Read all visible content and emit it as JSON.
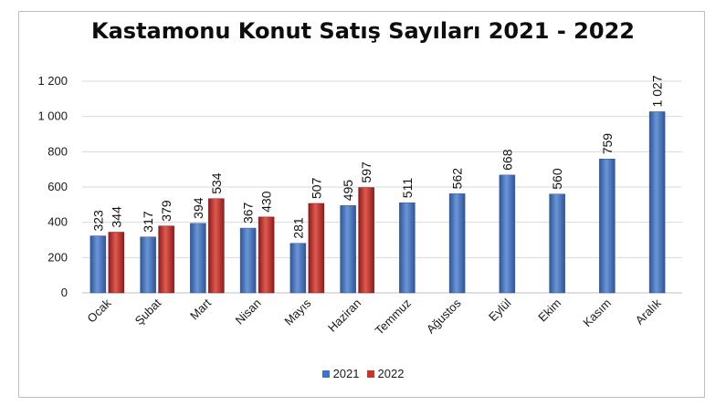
{
  "chart_data": {
    "type": "bar",
    "title": "Kastamonu Konut Satış Sayıları 2021 - 2022",
    "xlabel": "",
    "ylabel": "",
    "ylim": [
      0,
      1200
    ],
    "yticks": [
      0,
      200,
      400,
      600,
      800,
      1000,
      1200
    ],
    "ytick_labels": [
      "0",
      "200",
      "400",
      "600",
      "800",
      "1 000",
      "1 200"
    ],
    "grid": true,
    "legend_position": "bottom",
    "categories": [
      "Ocak",
      "Şubat",
      "Mart",
      "Nisan",
      "Mayıs",
      "Haziran",
      "Temmuz",
      "Ağustos",
      "Eylül",
      "Ekim",
      "Kasım",
      "Aralık"
    ],
    "series": [
      {
        "name": "2021",
        "color": "#4472c4",
        "values": [
          323,
          317,
          394,
          367,
          281,
          495,
          511,
          562,
          668,
          560,
          759,
          1027
        ],
        "labels": [
          "323",
          "317",
          "394",
          "367",
          "281",
          "495",
          "511",
          "562",
          "668",
          "560",
          "759",
          "1 027"
        ]
      },
      {
        "name": "2022",
        "color": "#c0392b",
        "values": [
          344,
          379,
          534,
          430,
          507,
          597,
          null,
          null,
          null,
          null,
          null,
          null
        ],
        "labels": [
          "344",
          "379",
          "534",
          "430",
          "507",
          "597",
          null,
          null,
          null,
          null,
          null,
          null
        ]
      }
    ]
  }
}
